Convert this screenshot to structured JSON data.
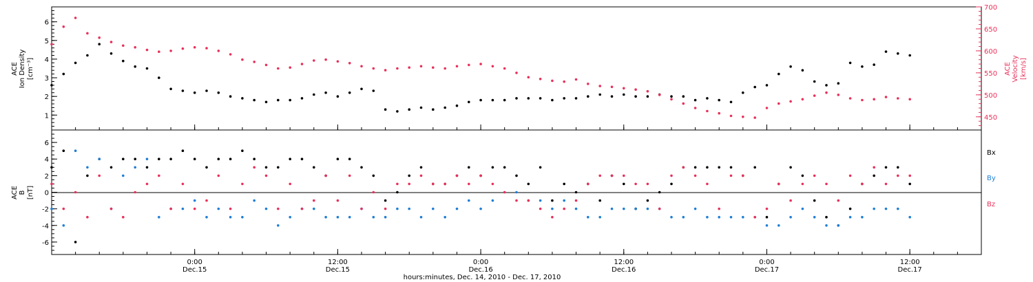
{
  "colors": {
    "black": "#000000",
    "pink": "#e8315a",
    "blue": "#1f7fd6",
    "axis": "#000000"
  },
  "x_axis": {
    "label": "hours:minutes, Dec. 14, 2010 - Dec. 17, 2010",
    "range_hours": [
      0,
      78
    ],
    "ticks": [
      {
        "hour": 12,
        "time": "0:00",
        "date": "Dec.15"
      },
      {
        "hour": 24,
        "time": "12:00",
        "date": "Dec.15"
      },
      {
        "hour": 36,
        "time": "0:00",
        "date": "Dec.16"
      },
      {
        "hour": 48,
        "time": "12:00",
        "date": "Dec.16"
      },
      {
        "hour": 60,
        "time": "0:00",
        "date": "Dec.17"
      },
      {
        "hour": 72,
        "time": "12:00",
        "date": "Dec.17"
      }
    ]
  },
  "chart_data": [
    {
      "type": "scatter",
      "title": "",
      "left_axis": {
        "label_lines": [
          "ACE",
          "Ion Density",
          "[cm⁻³]"
        ],
        "range": [
          0.2,
          6.8
        ],
        "ticks": [
          "1",
          "2",
          "3",
          "4",
          "5",
          "6"
        ]
      },
      "right_axis": {
        "label_lines": [
          "ACE",
          "Velocity",
          "[km/s]"
        ],
        "range": [
          420,
          700
        ],
        "ticks": [
          "450",
          "500",
          "550",
          "600",
          "650",
          "700"
        ]
      },
      "series": [
        {
          "axis": "left",
          "color": "black",
          "x": [
            0,
            1,
            2,
            3,
            4,
            5,
            6,
            7,
            8,
            9,
            10,
            11,
            12,
            13,
            14,
            15,
            16,
            17,
            18,
            19,
            20,
            21,
            22,
            23,
            24,
            25,
            26,
            27,
            28,
            29,
            30,
            31,
            32,
            33,
            34,
            35,
            36,
            37,
            38,
            39,
            40,
            41,
            42,
            43,
            44,
            45,
            46,
            47,
            48,
            49,
            50,
            51,
            52,
            53,
            54,
            55,
            56,
            57,
            58,
            59,
            60,
            61,
            62,
            63,
            64,
            65,
            66,
            67,
            68,
            69,
            70,
            71,
            72
          ],
          "y": [
            2.6,
            3.2,
            3.8,
            4.2,
            4.8,
            4.3,
            3.9,
            3.6,
            3.5,
            3.0,
            2.4,
            2.3,
            2.2,
            2.3,
            2.2,
            2.0,
            1.9,
            1.8,
            1.7,
            1.8,
            1.8,
            1.9,
            2.1,
            2.2,
            2.0,
            2.2,
            2.4,
            2.3,
            1.3,
            1.2,
            1.3,
            1.4,
            1.3,
            1.4,
            1.5,
            1.7,
            1.8,
            1.8,
            1.8,
            1.9,
            1.9,
            1.9,
            1.8,
            1.9,
            1.9,
            2.0,
            2.1,
            2.0,
            2.1,
            2.0,
            2.0,
            2.1,
            2.0,
            2.0,
            1.8,
            1.9,
            1.8,
            1.7,
            2.2,
            2.5,
            2.6,
            3.2,
            3.6,
            3.4,
            2.8,
            2.6,
            2.7,
            3.8,
            3.6,
            3.7,
            4.4,
            4.3,
            4.2
          ]
        },
        {
          "axis": "right",
          "color": "pink",
          "x": [
            0,
            1,
            2,
            3,
            4,
            5,
            6,
            7,
            8,
            9,
            10,
            11,
            12,
            13,
            14,
            15,
            16,
            17,
            18,
            19,
            20,
            21,
            22,
            23,
            24,
            25,
            26,
            27,
            28,
            29,
            30,
            31,
            32,
            33,
            34,
            35,
            36,
            37,
            38,
            39,
            40,
            41,
            42,
            43,
            44,
            45,
            46,
            47,
            48,
            49,
            50,
            51,
            52,
            53,
            54,
            55,
            56,
            57,
            58,
            59,
            60,
            61,
            62,
            63,
            64,
            65,
            66,
            67,
            68,
            69,
            70,
            71,
            72
          ],
          "y": [
            615,
            655,
            675,
            640,
            630,
            620,
            612,
            608,
            602,
            598,
            600,
            605,
            608,
            606,
            600,
            592,
            580,
            575,
            568,
            560,
            562,
            570,
            578,
            580,
            576,
            572,
            565,
            560,
            556,
            560,
            562,
            565,
            562,
            560,
            565,
            568,
            570,
            565,
            560,
            550,
            540,
            536,
            532,
            530,
            535,
            525,
            520,
            518,
            515,
            512,
            508,
            500,
            490,
            480,
            470,
            463,
            458,
            452,
            450,
            448,
            470,
            480,
            485,
            490,
            498,
            505,
            500,
            492,
            488,
            490,
            495,
            492,
            490
          ]
        }
      ]
    },
    {
      "type": "scatter",
      "title": "",
      "left_axis": {
        "label_lines": [
          "ACE",
          "B",
          "[nT]"
        ],
        "range": [
          -7.5,
          7.5
        ],
        "ticks": [
          "-6",
          "-4",
          "-2",
          "0",
          "2",
          "4",
          "6"
        ]
      },
      "legend": [
        "Bx",
        "By",
        "Bz"
      ],
      "series": [
        {
          "name": "Bx",
          "color": "black",
          "x": [
            0,
            1,
            2,
            3,
            4,
            5,
            6,
            7,
            8,
            9,
            10,
            11,
            12,
            13,
            14,
            15,
            16,
            17,
            18,
            19,
            20,
            21,
            22,
            23,
            24,
            25,
            26,
            27,
            28,
            29,
            30,
            31,
            32,
            33,
            34,
            35,
            36,
            37,
            38,
            39,
            40,
            41,
            42,
            43,
            44,
            45,
            46,
            47,
            48,
            49,
            50,
            51,
            52,
            53,
            54,
            55,
            56,
            57,
            58,
            59,
            60,
            61,
            62,
            63,
            64,
            65,
            66,
            67,
            68,
            69,
            70,
            71,
            72
          ],
          "y": [
            3,
            5,
            -6,
            2,
            4,
            3,
            4,
            4,
            3,
            4,
            4,
            5,
            4,
            3,
            4,
            4,
            5,
            4,
            3,
            3,
            4,
            4,
            3,
            2,
            4,
            4,
            3,
            2,
            -1,
            0,
            2,
            3,
            1,
            1,
            2,
            3,
            2,
            3,
            3,
            2,
            1,
            3,
            -1,
            1,
            0,
            1,
            -1,
            2,
            1,
            -2,
            -1,
            0,
            1,
            3,
            3,
            3,
            3,
            3,
            2,
            3,
            -3,
            1,
            3,
            2,
            -1,
            -3,
            -4,
            -2,
            1,
            2,
            3,
            3,
            1
          ]
        },
        {
          "name": "By",
          "color": "blue",
          "x": [
            0,
            1,
            2,
            3,
            4,
            5,
            6,
            7,
            8,
            9,
            10,
            11,
            12,
            13,
            14,
            15,
            16,
            17,
            18,
            19,
            20,
            21,
            22,
            23,
            24,
            25,
            26,
            27,
            28,
            29,
            30,
            31,
            32,
            33,
            34,
            35,
            36,
            37,
            38,
            39,
            40,
            41,
            42,
            43,
            44,
            45,
            46,
            47,
            48,
            49,
            50,
            51,
            52,
            53,
            54,
            55,
            56,
            57,
            58,
            59,
            60,
            61,
            62,
            63,
            64,
            65,
            66,
            67,
            68,
            69,
            70,
            71,
            72
          ],
          "y": [
            -2,
            -4,
            5,
            3,
            4,
            -2,
            2,
            3,
            4,
            -3,
            -2,
            -2,
            -1,
            -3,
            -2,
            -3,
            -3,
            -1,
            -2,
            -4,
            -3,
            -2,
            -2,
            -3,
            -3,
            -3,
            -2,
            -3,
            -3,
            -2,
            -2,
            -3,
            -2,
            -3,
            -2,
            -1,
            -2,
            -1,
            0,
            0,
            -1,
            -1,
            -2,
            -1,
            -2,
            -3,
            -3,
            -2,
            -2,
            -2,
            -2,
            -2,
            -3,
            -3,
            -2,
            -3,
            -3,
            -3,
            -3,
            -3,
            -4,
            -4,
            -3,
            -2,
            -3,
            -4,
            -4,
            -3,
            -3,
            -2,
            -2,
            -2,
            -3
          ]
        },
        {
          "name": "Bz",
          "color": "pink",
          "x": [
            0,
            1,
            2,
            3,
            4,
            5,
            6,
            7,
            8,
            9,
            10,
            11,
            12,
            13,
            14,
            15,
            16,
            17,
            18,
            19,
            20,
            21,
            22,
            23,
            24,
            25,
            26,
            27,
            28,
            29,
            30,
            31,
            32,
            33,
            34,
            35,
            36,
            37,
            38,
            39,
            40,
            41,
            42,
            43,
            44,
            45,
            46,
            47,
            48,
            49,
            50,
            51,
            52,
            53,
            54,
            55,
            56,
            57,
            58,
            59,
            60,
            61,
            62,
            63,
            64,
            65,
            66,
            67,
            68,
            69,
            70,
            71,
            72
          ],
          "y": [
            1,
            -2,
            0,
            -3,
            2,
            -2,
            -3,
            0,
            1,
            2,
            -2,
            1,
            -2,
            -1,
            2,
            -2,
            1,
            3,
            2,
            -2,
            1,
            -2,
            -1,
            2,
            -1,
            2,
            -2,
            0,
            -2,
            1,
            1,
            2,
            1,
            1,
            2,
            1,
            2,
            1,
            0,
            -1,
            -1,
            -2,
            -3,
            -2,
            -1,
            1,
            2,
            2,
            2,
            1,
            1,
            -2,
            2,
            3,
            2,
            1,
            -2,
            2,
            2,
            -3,
            -2,
            1,
            -1,
            1,
            2,
            1,
            -1,
            2,
            1,
            3,
            1,
            2,
            2
          ]
        }
      ]
    }
  ]
}
